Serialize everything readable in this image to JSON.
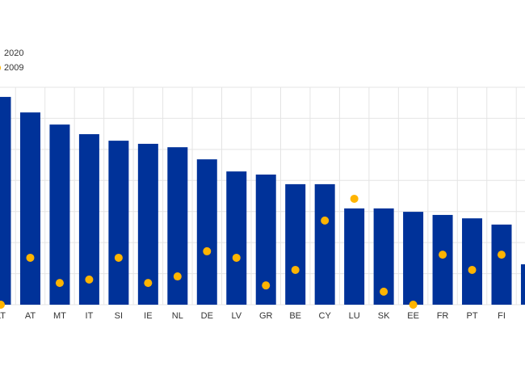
{
  "chart_data": {
    "type": "bar",
    "categories": [
      "LT",
      "AT",
      "MT",
      "IT",
      "SI",
      "IE",
      "NL",
      "DE",
      "LV",
      "GR",
      "BE",
      "CY",
      "LU",
      "SK",
      "EE",
      "FR",
      "PT",
      "FI",
      null
    ],
    "series": [
      {
        "name": "2020",
        "color": "#003299",
        "values": [
          6.69,
          6.19,
          5.8,
          5.49,
          5.28,
          5.18,
          5.07,
          4.68,
          4.29,
          4.19,
          3.88,
          3.88,
          3.1,
          3.1,
          2.99,
          2.89,
          2.78,
          2.58,
          1.3
        ]
      },
      {
        "name": "2009",
        "color": "#ffb400",
        "marker": "dot",
        "values": [
          0,
          1.51,
          0.7,
          0.81,
          1.51,
          0.7,
          0.91,
          1.72,
          1.51,
          0.62,
          1.12,
          2.71,
          3.41,
          0.42,
          0,
          1.61,
          1.12,
          1.61,
          null
        ]
      }
    ],
    "ylim": [
      0,
      7
    ],
    "yticks": [
      0,
      1,
      2,
      3,
      4,
      5,
      6,
      7
    ],
    "grid": true
  }
}
